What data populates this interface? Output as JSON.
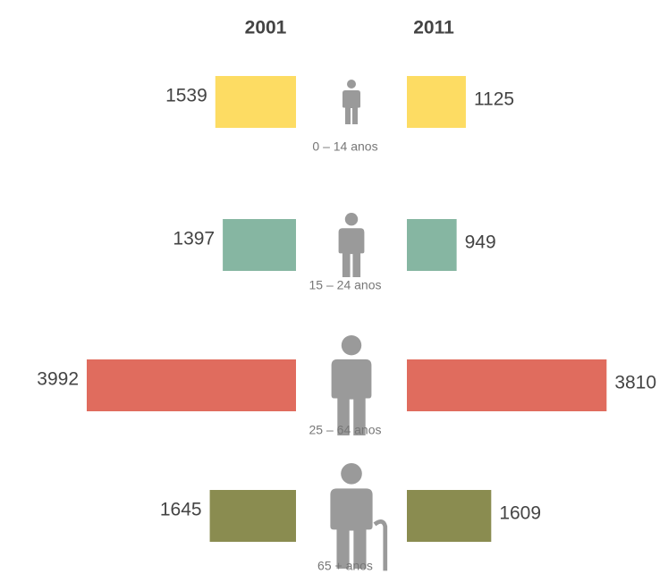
{
  "chart_data": {
    "type": "butterfly",
    "categories": [
      "0 – 14 anos",
      "15 – 24 anos",
      "25 – 64 anos",
      "65 + anos"
    ],
    "colors": [
      "#fddc63",
      "#86b6a2",
      "#e06c5e",
      "#8a8c50"
    ],
    "series": [
      {
        "name": "2001",
        "values": [
          1539,
          1397,
          3992,
          1645
        ]
      },
      {
        "name": "2011",
        "values": [
          1125,
          949,
          3810,
          1609
        ]
      }
    ]
  }
}
